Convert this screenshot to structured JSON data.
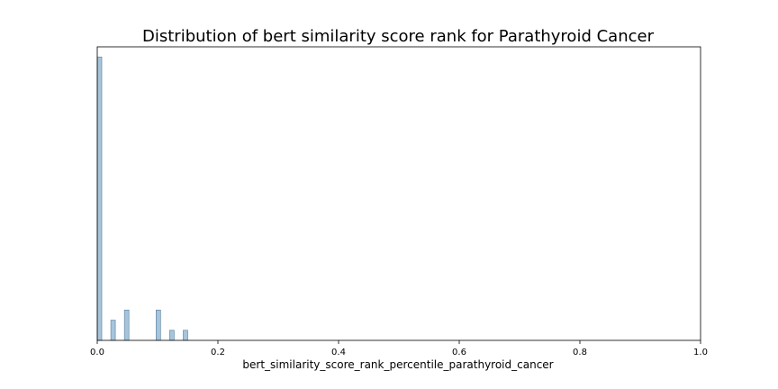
{
  "chart_data": {
    "type": "bar",
    "title": "Distribution of bert similarity score rank for Parathyroid Cancer",
    "xlabel": "bert_similarity_score_rank_percentile_parathyroid_cancer",
    "ylabel": "",
    "xlim": [
      0.0,
      1.0
    ],
    "ylim": [
      0,
      29
    ],
    "x_ticks": [
      "0.0",
      "0.2",
      "0.4",
      "0.6",
      "0.8",
      "1.0"
    ],
    "y_axis_visible": false,
    "grid": false,
    "bin_width": 0.0075,
    "bars": [
      {
        "x": 0.0,
        "value": 28
      },
      {
        "x": 0.0225,
        "value": 2
      },
      {
        "x": 0.045,
        "value": 3
      },
      {
        "x": 0.0975,
        "value": 3
      },
      {
        "x": 0.12,
        "value": 1
      },
      {
        "x": 0.1425,
        "value": 1
      }
    ],
    "colors": {
      "bar_fill": "#a6c4db",
      "bar_edge": "#5a7f9b",
      "axis": "#000000"
    }
  }
}
